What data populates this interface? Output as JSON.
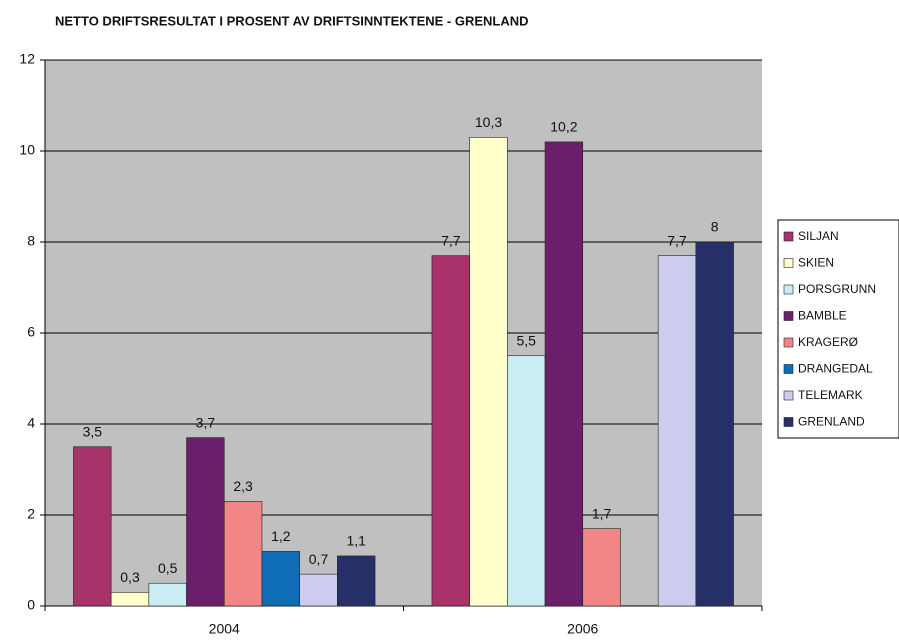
{
  "chart_data": {
    "type": "bar",
    "title": "NETTO DRIFTSRESULTAT I PROSENT AV DRIFTSINNTEKTENE - GRENLAND",
    "categories": [
      "2004",
      "2006"
    ],
    "series": [
      {
        "name": "SILJAN",
        "color": "#a8336b",
        "values": [
          3.5,
          7.7
        ],
        "value_labels": [
          "3,5",
          "7,7"
        ]
      },
      {
        "name": "SKIEN",
        "color": "#ffffcc",
        "values": [
          0.3,
          10.3
        ],
        "value_labels": [
          "0,3",
          "10,3"
        ]
      },
      {
        "name": "PORSGRUNN",
        "color": "#c8eef4",
        "values": [
          0.5,
          5.5
        ],
        "value_labels": [
          "0,5",
          "5,5"
        ]
      },
      {
        "name": "BAMBLE",
        "color": "#6b1f6b",
        "values": [
          3.7,
          10.2
        ],
        "value_labels": [
          "3,7",
          "10,2"
        ]
      },
      {
        "name": "KRAGERØ",
        "color": "#f28585",
        "values": [
          2.3,
          1.7
        ],
        "value_labels": [
          "2,3",
          "1,7"
        ]
      },
      {
        "name": "DRANGEDAL",
        "color": "#0e6db5",
        "values": [
          1.2,
          null
        ],
        "value_labels": [
          "1,2",
          null
        ]
      },
      {
        "name": "TELEMARK",
        "color": "#cccdee",
        "values": [
          0.7,
          7.7
        ],
        "value_labels": [
          "0,7",
          "7,7"
        ]
      },
      {
        "name": "GRENLAND",
        "color": "#262f68",
        "values": [
          1.1,
          8
        ],
        "value_labels": [
          "1,1",
          "8"
        ]
      }
    ],
    "ylim": [
      0,
      12
    ],
    "yticks": [
      0,
      2,
      4,
      6,
      8,
      10,
      12
    ],
    "grid": true,
    "legend": "right"
  }
}
